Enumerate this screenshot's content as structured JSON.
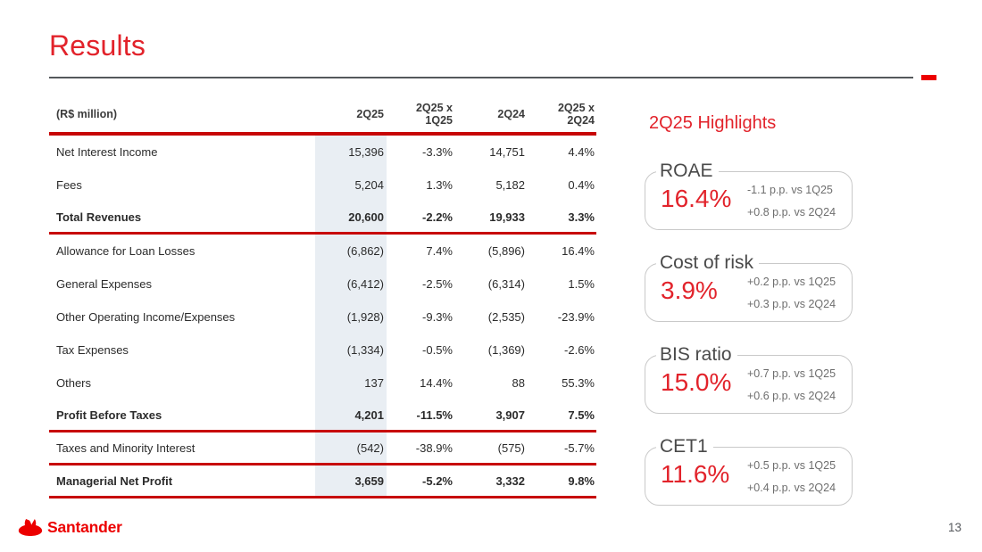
{
  "slide": {
    "title": "Results",
    "page_number": "13",
    "logo_text": "Santander"
  },
  "table": {
    "unit_label": "(R$ million)",
    "columns": [
      "2Q25",
      "2Q25 x\n1Q25",
      "2Q24",
      "2Q25 x\n2Q24"
    ],
    "rows": [
      {
        "label": "Net Interest Income",
        "values": [
          "15,396",
          "-3.3%",
          "14,751",
          "4.4%"
        ],
        "bold": false,
        "rule_after": false
      },
      {
        "label": "Fees",
        "values": [
          "5,204",
          "1.3%",
          "5,182",
          "0.4%"
        ],
        "bold": false,
        "rule_after": false
      },
      {
        "label": "Total Revenues",
        "values": [
          "20,600",
          "-2.2%",
          "19,933",
          "3.3%"
        ],
        "bold": true,
        "rule_after": true
      },
      {
        "label": "Allowance for Loan Losses",
        "values": [
          "(6,862)",
          "7.4%",
          "(5,896)",
          "16.4%"
        ],
        "bold": false,
        "rule_after": false
      },
      {
        "label": "General Expenses",
        "values": [
          "(6,412)",
          "-2.5%",
          "(6,314)",
          "1.5%"
        ],
        "bold": false,
        "rule_after": false
      },
      {
        "label": "Other Operating Income/Expenses",
        "values": [
          "(1,928)",
          "-9.3%",
          "(2,535)",
          "-23.9%"
        ],
        "bold": false,
        "rule_after": false
      },
      {
        "label": "Tax Expenses",
        "values": [
          "(1,334)",
          "-0.5%",
          "(1,369)",
          "-2.6%"
        ],
        "bold": false,
        "rule_after": false
      },
      {
        "label": "Others",
        "values": [
          "137",
          "14.4%",
          "88",
          "55.3%"
        ],
        "bold": false,
        "rule_after": false
      },
      {
        "label": "Profit Before Taxes",
        "values": [
          "4,201",
          "-11.5%",
          "3,907",
          "7.5%"
        ],
        "bold": true,
        "rule_after": true
      },
      {
        "label": "Taxes and Minority Interest",
        "values": [
          "(542)",
          "-38.9%",
          "(575)",
          "-5.7%"
        ],
        "bold": false,
        "rule_after": true
      },
      {
        "label": "Managerial Net Profit",
        "values": [
          "3,659",
          "-5.2%",
          "3,332",
          "9.8%"
        ],
        "bold": true,
        "rule_after": true
      }
    ]
  },
  "highlights": {
    "title": "2Q25 Highlights",
    "cards": [
      {
        "label": "ROAE",
        "value": "16.4%",
        "deltas": [
          "-1.1 p.p. vs 1Q25",
          "+0.8 p.p. vs 2Q24"
        ]
      },
      {
        "label": "Cost of risk",
        "value": "3.9%",
        "deltas": [
          "+0.2 p.p. vs 1Q25",
          "+0.3 p.p. vs 2Q24"
        ]
      },
      {
        "label": "BIS ratio",
        "value": "15.0%",
        "deltas": [
          "+0.7 p.p. vs 1Q25",
          "+0.6 p.p. vs 2Q24"
        ]
      },
      {
        "label": "CET1",
        "value": "11.6%",
        "deltas": [
          "+0.5 p.p. vs 1Q25",
          "+0.4 p.p. vs 2Q24"
        ]
      }
    ]
  },
  "colors": {
    "santander_red": "#ec0000",
    "title_red": "#e2232b",
    "table_rule_red": "#c70505",
    "highlight_column_bg": "#e9eef3",
    "text_dark": "#2b2b2b",
    "gray_line": "#55585c",
    "muted_gray": "#6e6e6e"
  }
}
